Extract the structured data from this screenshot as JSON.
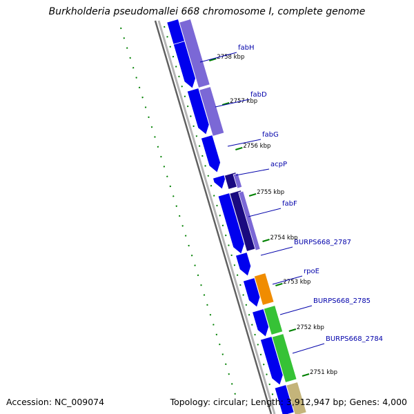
{
  "title": "Burkholderia pseudomallei 668 chromosome I, complete genome",
  "footer": {
    "accession_label": "Accession:",
    "accession": "NC_009074",
    "topology_label": "Topology:",
    "topology": "circular;",
    "length_label": "Length:",
    "length": "3,912,947 bp;",
    "genes_label": "Genes:",
    "genes": "4,000"
  },
  "colors": {
    "cds": "#0000ee",
    "fab_cluster": "#7b68d6",
    "acp": "#1a0a80",
    "rpoE": "#f08c00",
    "green_genes": "#36c236",
    "tan_gene": "#c4b47a",
    "backbone": "#808080",
    "tick": "#008000",
    "label": "#0000aa"
  },
  "ticks": [
    "2758 kbp",
    "2757 kbp",
    "2756 kbp",
    "2755 kbp",
    "2754 kbp",
    "2753 kbp",
    "2752 kbp",
    "2751 kbp"
  ],
  "gene_labels": [
    "fabH",
    "fabD",
    "fabG",
    "acpP",
    "fabF",
    "BURPS668_2787",
    "rpoE",
    "BURPS668_2785",
    "BURPS668_2784"
  ]
}
